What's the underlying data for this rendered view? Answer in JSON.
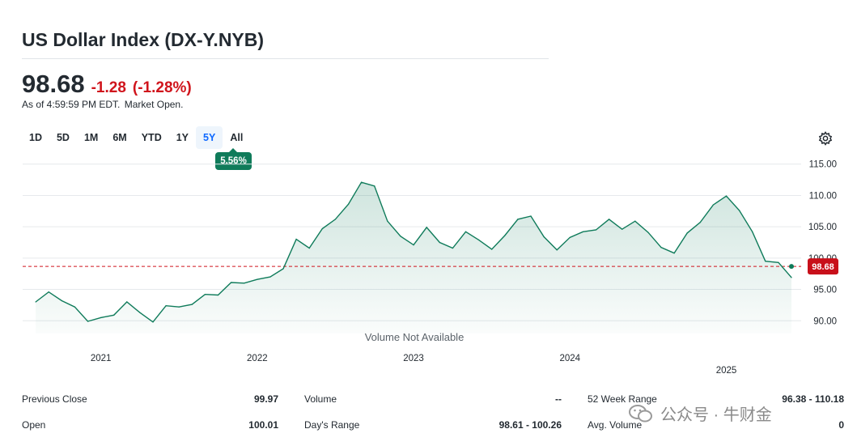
{
  "header": {
    "title": "US Dollar Index (DX-Y.NYB)",
    "price": "98.68",
    "change": "-1.28",
    "change_pct": "(-1.28%)",
    "as_of": "As of 4:59:59 PM EDT.",
    "market_status": "Market Open."
  },
  "ranges": {
    "items": [
      "1D",
      "5D",
      "1M",
      "6M",
      "YTD",
      "1Y",
      "5Y",
      "All"
    ],
    "active": "5Y",
    "performance_badge": "5.56%"
  },
  "chart": {
    "volume_note": "Volume Not Available",
    "current_price_label": "98.68"
  },
  "chart_data": {
    "type": "area",
    "x_labels": [
      "2021",
      "2022",
      "2023",
      "2024",
      "2025"
    ],
    "y_ticks": [
      "115.00",
      "110.00",
      "105.00",
      "100.00",
      "95.00",
      "90.00"
    ],
    "ylim": [
      89,
      116
    ],
    "xlim": [
      "2020-07",
      "2025-06"
    ],
    "reference_line": 98.68,
    "series": [
      {
        "x": [
          "2020-08",
          "2020-09",
          "2020-10",
          "2020-11",
          "2020-12",
          "2021-01",
          "2021-02",
          "2021-03",
          "2021-04",
          "2021-05",
          "2021-06",
          "2021-07",
          "2021-08",
          "2021-09",
          "2021-10",
          "2021-11",
          "2021-12",
          "2022-01",
          "2022-02",
          "2022-03",
          "2022-04",
          "2022-05",
          "2022-06",
          "2022-07",
          "2022-08",
          "2022-09",
          "2022-10",
          "2022-11",
          "2022-12",
          "2023-01",
          "2023-02",
          "2023-03",
          "2023-04",
          "2023-05",
          "2023-06",
          "2023-07",
          "2023-08",
          "2023-09",
          "2023-10",
          "2023-11",
          "2023-12",
          "2024-01",
          "2024-02",
          "2024-03",
          "2024-04",
          "2024-05",
          "2024-06",
          "2024-07",
          "2024-08",
          "2024-09",
          "2024-10",
          "2024-11",
          "2024-12",
          "2025-01",
          "2025-02",
          "2025-03",
          "2025-04",
          "2025-05",
          "2025-06"
        ],
        "values": [
          93.0,
          94.6,
          93.2,
          92.2,
          89.9,
          90.5,
          90.9,
          93.0,
          91.3,
          89.8,
          92.4,
          92.2,
          92.6,
          94.2,
          94.1,
          96.1,
          96.0,
          96.6,
          97.0,
          98.3,
          103.0,
          101.6,
          104.7,
          106.2,
          108.6,
          112.1,
          111.5,
          105.9,
          103.5,
          102.1,
          104.9,
          102.5,
          101.6,
          104.2,
          102.9,
          101.4,
          103.6,
          106.2,
          106.7,
          103.4,
          101.3,
          103.3,
          104.2,
          104.5,
          106.2,
          104.6,
          105.9,
          104.1,
          101.7,
          100.8,
          104.0,
          105.7,
          108.5,
          109.9,
          107.6,
          104.2,
          99.5,
          99.3,
          96.9
        ]
      }
    ]
  },
  "stats": {
    "col1": [
      {
        "label": "Previous Close",
        "value": "99.97"
      },
      {
        "label": "Open",
        "value": "100.01"
      }
    ],
    "col2": [
      {
        "label": "Volume",
        "value": "--"
      },
      {
        "label": "Day's Range",
        "value": "98.61 - 100.26"
      }
    ],
    "col3": [
      {
        "label": "52 Week Range",
        "value": "96.38 - 110.18"
      },
      {
        "label": "Avg. Volume",
        "value": "0"
      }
    ]
  },
  "watermark": {
    "text": "公众号 · 牛财金",
    "icon": "wechat-icon"
  },
  "colors": {
    "accent": "#0f69ff",
    "down": "#d0141c",
    "line": "#0f7b5a",
    "badge": "#0f7b5a"
  }
}
